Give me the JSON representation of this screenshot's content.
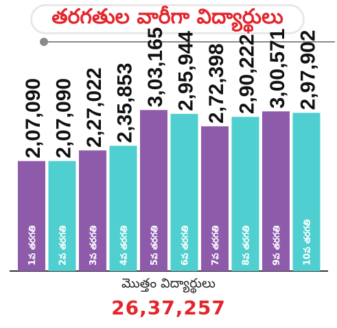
{
  "title": "తరగతుల వారీగా విద్యార్థులు",
  "colors": {
    "accent": "#e3252c",
    "purple": "#8e5bab",
    "teal": "#4fcfcf",
    "axis": "#333333"
  },
  "chart_data": {
    "type": "bar",
    "categories": [
      "1వ తరగతి",
      "2వ తరగతి",
      "3వ తరగతి",
      "4వ తరగతి",
      "5వ తరగతి",
      "6వ తరగతి",
      "7వ తరగతి",
      "8వ తరగతి",
      "9వ తరగతి",
      "10వ తరగతి"
    ],
    "values": [
      207090,
      207090,
      227022,
      235853,
      303165,
      295944,
      272398,
      290222,
      300571,
      297902
    ],
    "value_labels": [
      "2,07,090",
      "2,07,090",
      "2,27,022",
      "2,35,853",
      "3,03,165",
      "2,95,944",
      "2,72,398",
      "2,90,222",
      "3,00,571",
      "2,97,902"
    ],
    "bar_colors": [
      "#8e5bab",
      "#4fcfcf",
      "#8e5bab",
      "#4fcfcf",
      "#8e5bab",
      "#4fcfcf",
      "#8e5bab",
      "#4fcfcf",
      "#8e5bab",
      "#4fcfcf"
    ],
    "title": "తరగతుల వారీగా విద్యార్థులు",
    "xlabel": "",
    "ylabel": "",
    "ylim": [
      0,
      310000
    ],
    "grid": false
  },
  "total": {
    "label": "మొత్తం విద్యార్థులు",
    "value": "26,37,257"
  }
}
